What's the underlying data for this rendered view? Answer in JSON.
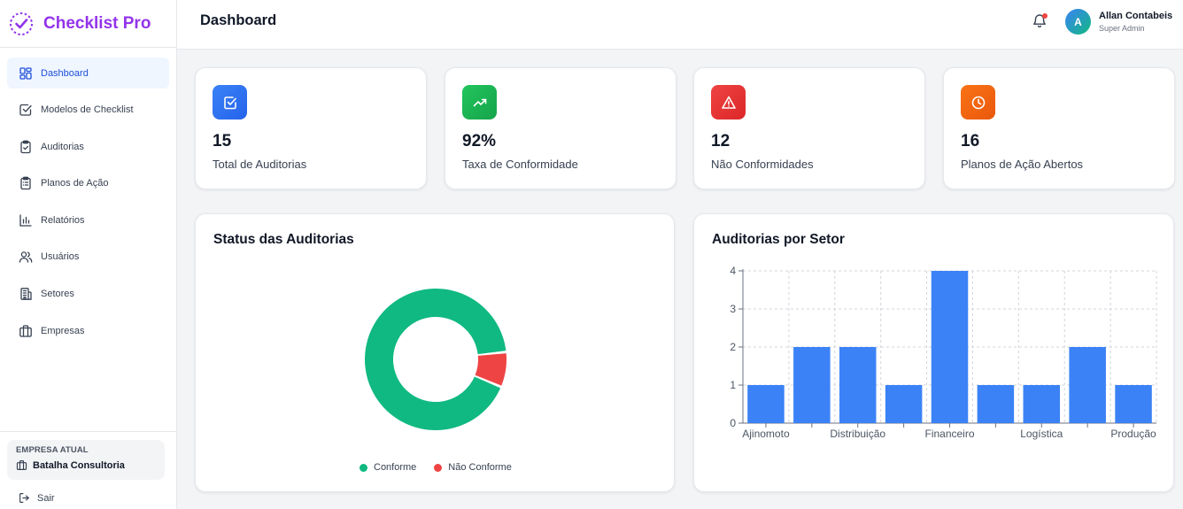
{
  "app": {
    "name": "Checklist Pro"
  },
  "sidebar": {
    "items": [
      {
        "label": "Dashboard",
        "icon": "dashboard-grid-icon",
        "active": true
      },
      {
        "label": "Modelos de Checklist",
        "icon": "checkbox-icon",
        "active": false
      },
      {
        "label": "Auditorias",
        "icon": "clipboard-check-icon",
        "active": false
      },
      {
        "label": "Planos de Ação",
        "icon": "clipboard-list-icon",
        "active": false
      },
      {
        "label": "Relatórios",
        "icon": "bar-chart-icon",
        "active": false
      },
      {
        "label": "Usuários",
        "icon": "users-icon",
        "active": false
      },
      {
        "label": "Setores",
        "icon": "building-icon",
        "active": false
      },
      {
        "label": "Empresas",
        "icon": "briefcase-icon",
        "active": false
      }
    ],
    "company_caption": "EMPRESA ATUAL",
    "company_name": "Batalha Consultoria",
    "logout_label": "Sair"
  },
  "header": {
    "title": "Dashboard",
    "user_initial": "A",
    "user_name": "Allan Contabeis",
    "user_role": "Super Admin"
  },
  "stats": [
    {
      "value": "15",
      "label": "Total de Auditorias",
      "icon": "checkbox-icon",
      "color": "#3b82f6"
    },
    {
      "value": "92%",
      "label": "Taxa de Conformidade",
      "icon": "trending-up-icon",
      "color": "#22c55e"
    },
    {
      "value": "12",
      "label": "Não Conformidades",
      "icon": "alert-triangle-icon",
      "color": "#ef4444"
    },
    {
      "value": "16",
      "label": "Planos de Ação Abertos",
      "icon": "clock-icon",
      "color": "#f97316"
    }
  ],
  "status_panel": {
    "title": "Status das Auditorias"
  },
  "sector_panel": {
    "title": "Auditorias por Setor"
  },
  "chart_data": [
    {
      "type": "pie",
      "title": "Status das Auditorias",
      "donut": true,
      "categories": [
        "Conforme",
        "Não Conforme"
      ],
      "values": [
        92,
        8
      ],
      "colors": [
        "#10b981",
        "#ef4444"
      ],
      "legend": "bottom"
    },
    {
      "type": "bar",
      "title": "Auditorias por Setor",
      "categories": [
        "Ajinomoto",
        "",
        "Distribuição",
        "",
        "Financeiro",
        "",
        "Logística",
        "",
        "Produção"
      ],
      "values": [
        1,
        2,
        2,
        1,
        4,
        1,
        1,
        2,
        1
      ],
      "ylim": [
        0,
        4
      ],
      "yticks": [
        "0",
        "1",
        "2",
        "3",
        "4"
      ],
      "grid": true,
      "color": "#3b82f6"
    }
  ]
}
